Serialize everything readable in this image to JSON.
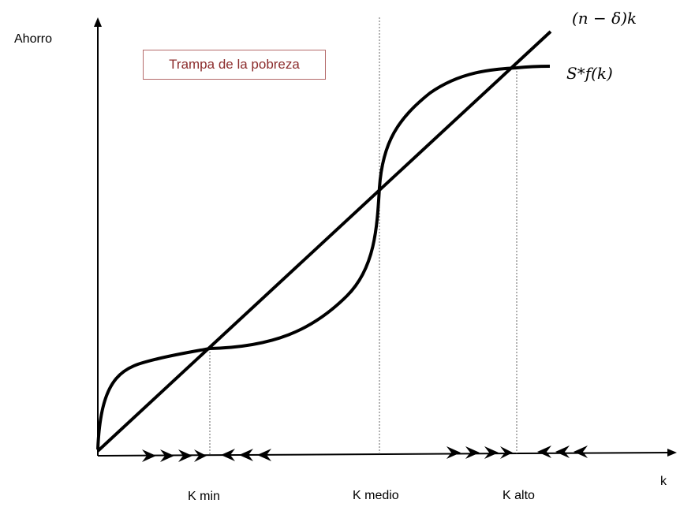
{
  "diagram": {
    "title_box": "Trampa de la pobreza",
    "y_axis_label": "Ahorro",
    "x_axis_label": "k",
    "line_label": "(n − δ)k",
    "curve_label": "S*f(k)",
    "points": [
      {
        "label": "K min"
      },
      {
        "label": "K medio"
      },
      {
        "label": "K alto"
      }
    ],
    "arrows": {
      "from_zero_to_kmin": "right",
      "kmin_to_kmedio": "left",
      "kmedio_to_kalto": "right",
      "after_kalto": "left"
    }
  }
}
